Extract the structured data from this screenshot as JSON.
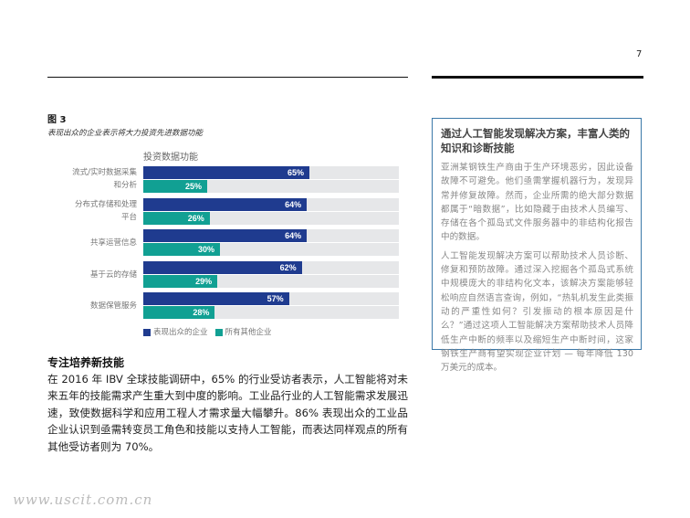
{
  "page_number": "7",
  "figure": {
    "label": "图 3",
    "caption": "表现出众的企业表示将大力投资先进数据功能"
  },
  "chart_data": {
    "type": "bar",
    "orientation": "horizontal",
    "title": "投资数据功能",
    "categories": [
      "流式/实时数据采集和分析",
      "分布式存储和处理平台",
      "共享运营信息",
      "基于云的存储",
      "数据保管服务"
    ],
    "category_lines": [
      [
        "流式/实时数据采集",
        "和分析"
      ],
      [
        "分布式存储和处理",
        "平台"
      ],
      [
        "共享运营信息"
      ],
      [
        "基于云的存储"
      ],
      [
        "数据保管服务"
      ]
    ],
    "xlim": [
      0,
      100
    ],
    "series": [
      {
        "name": "表现出众的企业",
        "color": "#1f3b8f",
        "values": [
          65,
          64,
          64,
          62,
          57
        ],
        "labels": [
          "65%",
          "64%",
          "64%",
          "62%",
          "57%"
        ]
      },
      {
        "name": "所有其他企业",
        "color": "#11a093",
        "values": [
          25,
          26,
          30,
          29,
          28
        ],
        "labels": [
          "25%",
          "26%",
          "30%",
          "29%",
          "28%"
        ]
      }
    ],
    "track_color": "#e6e7e9",
    "legend": "bottom-left"
  },
  "section": {
    "heading": "专注培养新技能",
    "body": "在 2016 年 IBV 全球技能调研中，65% 的行业受访者表示，人工智能将对未来五年的技能需求产生重大到中度的影响。工业品行业的人工智能需求发展迅速，致使数据科学和应用工程人才需求量大幅攀升。86% 表现出众的工业品企业认识到亟需转变员工角色和技能以支持人工智能，而表达同样观点的所有其他受访者则为 70%。"
  },
  "sidebar": {
    "title": "通过人工智能发现解决方案，丰富人类的知识和诊断技能",
    "paragraphs": [
      "亚洲某钢铁生产商由于生产环境恶劣，因此设备故障不可避免。他们亟需掌握机器行为，发现异常并修复故障。然而，企业所需的绝大部分数据都属于“暗数据”，比如隐藏于由技术人员编写、存储在各个孤岛式文件服务器中的非结构化报告中的数据。",
      "人工智能发现解决方案可以帮助技术人员诊断、修复和预防故障。通过深入挖掘各个孤岛式系统中规模庞大的非结构化文本，该解决方案能够轻松响应自然语言查询，例如，“热轧机发生此类振动的严重性如何？引发振动的根本原因是什么？”通过这项人工智能解决方案帮助技术人员降低生产中断的频率以及缩短生产中断时间，这家钢铁生产商有望实现企业计划 — 每年降低 130 万美元的成本。"
    ],
    "border_color": "#3b78a8"
  },
  "watermark": "www.uscit.com.cn"
}
